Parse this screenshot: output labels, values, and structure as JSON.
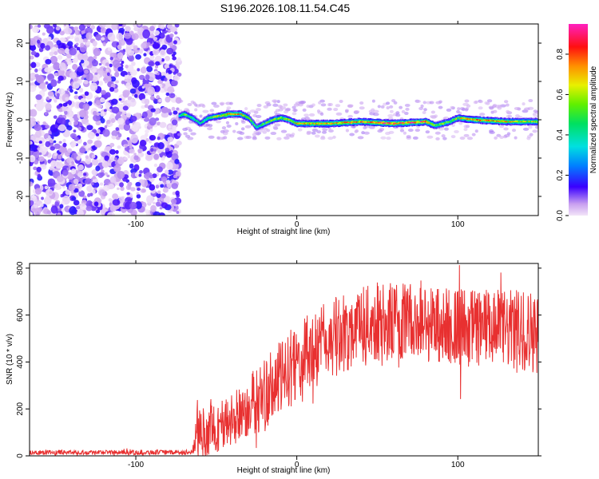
{
  "title": "S196.2026.108.11.54.C45",
  "chart_data": [
    {
      "type": "heatmap",
      "name": "spectrogram",
      "xlabel": "Height of straight line (km)",
      "ylabel": "Frequency (Hz)",
      "xlim": [
        -166,
        150
      ],
      "ylim": [
        -25,
        25
      ],
      "xticks": [
        -100,
        0,
        100
      ],
      "yticks": [
        -20,
        -10,
        0,
        10,
        20
      ],
      "colorbar": {
        "label": "Normalized spectral amplitude",
        "range": [
          0,
          0.95
        ],
        "ticks": [
          0.0,
          0.2,
          0.4,
          0.6,
          0.8
        ]
      },
      "noise_region_x": [
        -166,
        -73
      ],
      "carrier_trace": [
        {
          "x": -73,
          "freq": 1.0,
          "amp": 0.45
        },
        {
          "x": -70,
          "freq": 1.5,
          "amp": 0.55
        },
        {
          "x": -65,
          "freq": 0.5,
          "amp": 0.5
        },
        {
          "x": -60,
          "freq": -1.0,
          "amp": 0.4
        },
        {
          "x": -55,
          "freq": 0.5,
          "amp": 0.55
        },
        {
          "x": -48,
          "freq": 1.0,
          "amp": 0.65
        },
        {
          "x": -42,
          "freq": 1.5,
          "amp": 0.75
        },
        {
          "x": -35,
          "freq": 1.5,
          "amp": 0.7
        },
        {
          "x": -30,
          "freq": 0.5,
          "amp": 0.55
        },
        {
          "x": -25,
          "freq": -2.0,
          "amp": 0.45
        },
        {
          "x": -20,
          "freq": -1.0,
          "amp": 0.55
        },
        {
          "x": -15,
          "freq": 0.0,
          "amp": 0.6
        },
        {
          "x": -10,
          "freq": 0.5,
          "amp": 0.65
        },
        {
          "x": -5,
          "freq": 0.0,
          "amp": 0.6
        },
        {
          "x": 0,
          "freq": -1.0,
          "amp": 0.7
        },
        {
          "x": 20,
          "freq": -1.0,
          "amp": 0.75
        },
        {
          "x": 40,
          "freq": -0.5,
          "amp": 0.8
        },
        {
          "x": 60,
          "freq": -1.0,
          "amp": 0.85
        },
        {
          "x": 80,
          "freq": -0.5,
          "amp": 0.85
        },
        {
          "x": 86,
          "freq": -1.5,
          "amp": 0.6
        },
        {
          "x": 95,
          "freq": -0.5,
          "amp": 0.6
        },
        {
          "x": 100,
          "freq": 0.5,
          "amp": 0.65
        },
        {
          "x": 110,
          "freq": 0.0,
          "amp": 0.8
        },
        {
          "x": 130,
          "freq": -0.5,
          "amp": 0.7
        },
        {
          "x": 150,
          "freq": -0.5,
          "amp": 0.65
        }
      ]
    },
    {
      "type": "line",
      "name": "snr",
      "xlabel": "Height of straight line (km)",
      "ylabel": "SNR (10 * v/v)",
      "xlim": [
        -166,
        150
      ],
      "ylim": [
        0,
        820
      ],
      "xticks": [
        -100,
        0,
        100
      ],
      "yticks": [
        0,
        200,
        400,
        600,
        800
      ],
      "color": "#e83030",
      "envelope": [
        {
          "x": -166,
          "mean": 15,
          "spread": 10
        },
        {
          "x": -65,
          "mean": 15,
          "spread": 10
        },
        {
          "x": -62,
          "mean": 90,
          "spread": 110
        },
        {
          "x": -50,
          "mean": 120,
          "spread": 110
        },
        {
          "x": -40,
          "mean": 150,
          "spread": 120
        },
        {
          "x": -30,
          "mean": 210,
          "spread": 130
        },
        {
          "x": -20,
          "mean": 260,
          "spread": 160
        },
        {
          "x": -10,
          "mean": 330,
          "spread": 160
        },
        {
          "x": 0,
          "mean": 400,
          "spread": 170
        },
        {
          "x": 15,
          "mean": 470,
          "spread": 170
        },
        {
          "x": 30,
          "mean": 530,
          "spread": 170
        },
        {
          "x": 50,
          "mean": 570,
          "spread": 170
        },
        {
          "x": 75,
          "mean": 570,
          "spread": 170
        },
        {
          "x": 100,
          "mean": 550,
          "spread": 170
        },
        {
          "x": 125,
          "mean": 540,
          "spread": 170
        },
        {
          "x": 150,
          "mean": 530,
          "spread": 180
        }
      ]
    }
  ]
}
